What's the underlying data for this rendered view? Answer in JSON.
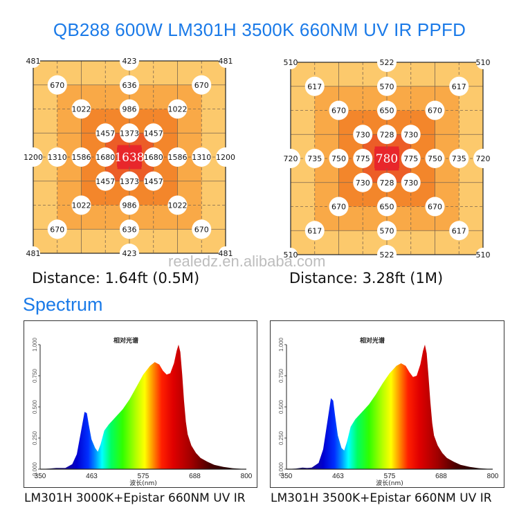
{
  "title": "QB288 600W LM301H 3500K 660NM UV IR PPFD",
  "watermark": "realedz.en.alibaba.com",
  "ppfd_maps": [
    {
      "distance_label": "Distance: 1.64ft (0.5M)",
      "center_value": "1638",
      "points": [
        {
          "r": 0,
          "c": 0,
          "v": "481",
          "style": "edge"
        },
        {
          "r": 0,
          "c": 4,
          "v": "423",
          "style": "circle"
        },
        {
          "r": 0,
          "c": 8,
          "v": "481",
          "style": "edge"
        },
        {
          "r": 1,
          "c": 1,
          "v": "670",
          "style": "circle"
        },
        {
          "r": 1,
          "c": 4,
          "v": "636",
          "style": "circle"
        },
        {
          "r": 1,
          "c": 7,
          "v": "670",
          "style": "circle"
        },
        {
          "r": 2,
          "c": 2,
          "v": "1022",
          "style": "circle"
        },
        {
          "r": 2,
          "c": 4,
          "v": "986",
          "style": "circle"
        },
        {
          "r": 2,
          "c": 6,
          "v": "1022",
          "style": "circle"
        },
        {
          "r": 3,
          "c": 3,
          "v": "1457",
          "style": "circle"
        },
        {
          "r": 3,
          "c": 4,
          "v": "1373",
          "style": "circle"
        },
        {
          "r": 3,
          "c": 5,
          "v": "1457",
          "style": "circle"
        },
        {
          "r": 4,
          "c": 0,
          "v": "1200",
          "style": "circle"
        },
        {
          "r": 4,
          "c": 1,
          "v": "1310",
          "style": "circle"
        },
        {
          "r": 4,
          "c": 2,
          "v": "1586",
          "style": "circle"
        },
        {
          "r": 4,
          "c": 3,
          "v": "1680",
          "style": "circle"
        },
        {
          "r": 4,
          "c": 5,
          "v": "1680",
          "style": "circle"
        },
        {
          "r": 4,
          "c": 6,
          "v": "1586",
          "style": "circle"
        },
        {
          "r": 4,
          "c": 7,
          "v": "1310",
          "style": "circle"
        },
        {
          "r": 4,
          "c": 8,
          "v": "1200",
          "style": "circle"
        },
        {
          "r": 5,
          "c": 3,
          "v": "1457",
          "style": "circle"
        },
        {
          "r": 5,
          "c": 4,
          "v": "1373",
          "style": "circle"
        },
        {
          "r": 5,
          "c": 5,
          "v": "1457",
          "style": "circle"
        },
        {
          "r": 6,
          "c": 2,
          "v": "1022",
          "style": "circle"
        },
        {
          "r": 6,
          "c": 4,
          "v": "986",
          "style": "circle"
        },
        {
          "r": 6,
          "c": 6,
          "v": "1022",
          "style": "circle"
        },
        {
          "r": 7,
          "c": 1,
          "v": "670",
          "style": "circle"
        },
        {
          "r": 7,
          "c": 4,
          "v": "636",
          "style": "circle"
        },
        {
          "r": 7,
          "c": 7,
          "v": "670",
          "style": "circle"
        },
        {
          "r": 8,
          "c": 0,
          "v": "481",
          "style": "edge"
        },
        {
          "r": 8,
          "c": 4,
          "v": "423",
          "style": "circle"
        },
        {
          "r": 8,
          "c": 8,
          "v": "481",
          "style": "edge"
        }
      ]
    },
    {
      "distance_label": "Distance: 3.28ft (1M)",
      "center_value": "780",
      "points": [
        {
          "r": 0,
          "c": 0,
          "v": "510",
          "style": "edge"
        },
        {
          "r": 0,
          "c": 4,
          "v": "522",
          "style": "circle"
        },
        {
          "r": 0,
          "c": 8,
          "v": "510",
          "style": "edge"
        },
        {
          "r": 1,
          "c": 1,
          "v": "617",
          "style": "circle"
        },
        {
          "r": 1,
          "c": 4,
          "v": "570",
          "style": "circle"
        },
        {
          "r": 1,
          "c": 7,
          "v": "617",
          "style": "circle"
        },
        {
          "r": 2,
          "c": 2,
          "v": "670",
          "style": "circle"
        },
        {
          "r": 2,
          "c": 4,
          "v": "650",
          "style": "circle"
        },
        {
          "r": 2,
          "c": 6,
          "v": "670",
          "style": "circle"
        },
        {
          "r": 3,
          "c": 3,
          "v": "730",
          "style": "circle"
        },
        {
          "r": 3,
          "c": 4,
          "v": "728",
          "style": "circle"
        },
        {
          "r": 3,
          "c": 5,
          "v": "730",
          "style": "circle"
        },
        {
          "r": 4,
          "c": 0,
          "v": "720",
          "style": "circle"
        },
        {
          "r": 4,
          "c": 1,
          "v": "735",
          "style": "circle"
        },
        {
          "r": 4,
          "c": 2,
          "v": "750",
          "style": "circle"
        },
        {
          "r": 4,
          "c": 3,
          "v": "775",
          "style": "circle"
        },
        {
          "r": 4,
          "c": 5,
          "v": "775",
          "style": "circle"
        },
        {
          "r": 4,
          "c": 6,
          "v": "750",
          "style": "circle"
        },
        {
          "r": 4,
          "c": 7,
          "v": "735",
          "style": "circle"
        },
        {
          "r": 4,
          "c": 8,
          "v": "720",
          "style": "circle"
        },
        {
          "r": 5,
          "c": 3,
          "v": "730",
          "style": "circle"
        },
        {
          "r": 5,
          "c": 4,
          "v": "728",
          "style": "circle"
        },
        {
          "r": 5,
          "c": 5,
          "v": "730",
          "style": "circle"
        },
        {
          "r": 6,
          "c": 2,
          "v": "670",
          "style": "circle"
        },
        {
          "r": 6,
          "c": 4,
          "v": "650",
          "style": "circle"
        },
        {
          "r": 6,
          "c": 6,
          "v": "670",
          "style": "circle"
        },
        {
          "r": 7,
          "c": 1,
          "v": "617",
          "style": "circle"
        },
        {
          "r": 7,
          "c": 4,
          "v": "570",
          "style": "circle"
        },
        {
          "r": 7,
          "c": 7,
          "v": "617",
          "style": "circle"
        },
        {
          "r": 8,
          "c": 0,
          "v": "510",
          "style": "edge"
        },
        {
          "r": 8,
          "c": 4,
          "v": "522",
          "style": "circle"
        },
        {
          "r": 8,
          "c": 8,
          "v": "510",
          "style": "edge"
        }
      ]
    }
  ],
  "heat_colors": [
    "#fcc96c",
    "#f9a947",
    "#f3862b",
    "#ec5d27",
    "#e8262b"
  ],
  "section_title": "Spectrum",
  "chart_data": [
    {
      "type": "area",
      "title": "相对光谱",
      "xlabel": "波长(nm)",
      "ylabel": "",
      "xlim": [
        350,
        800
      ],
      "ylim": [
        0,
        1
      ],
      "xticks": [
        "350",
        "463",
        "575",
        "688",
        "800"
      ],
      "yticks": [
        "0.000",
        "0.250",
        "0.500",
        "0.750",
        "1.000"
      ],
      "caption": "LM301H 3000K+Epistar 660NM UV IR",
      "x": [
        350,
        370,
        385,
        395,
        405,
        420,
        430,
        440,
        447,
        452,
        456,
        462,
        470,
        476,
        482,
        490,
        500,
        510,
        520,
        530,
        545,
        560,
        575,
        590,
        600,
        610,
        618,
        626,
        634,
        642,
        648,
        652,
        656,
        660,
        664,
        668,
        672,
        680,
        690,
        700,
        715,
        730,
        750,
        770,
        800
      ],
      "values": [
        0.0,
        0.005,
        0.01,
        0.01,
        0.01,
        0.04,
        0.12,
        0.32,
        0.46,
        0.45,
        0.36,
        0.24,
        0.17,
        0.14,
        0.2,
        0.31,
        0.36,
        0.4,
        0.44,
        0.48,
        0.56,
        0.66,
        0.76,
        0.83,
        0.86,
        0.84,
        0.79,
        0.76,
        0.77,
        0.85,
        0.95,
        1.0,
        0.94,
        0.76,
        0.55,
        0.38,
        0.28,
        0.19,
        0.13,
        0.09,
        0.06,
        0.035,
        0.018,
        0.008,
        0.0
      ]
    },
    {
      "type": "area",
      "title": "相对光谱",
      "xlabel": "波长(nm)",
      "ylabel": "",
      "xlim": [
        350,
        800
      ],
      "ylim": [
        0,
        1
      ],
      "xticks": [
        "350",
        "463",
        "575",
        "688",
        "800"
      ],
      "yticks": [
        "0.000",
        "0.250",
        "0.500",
        "0.750",
        "1.000"
      ],
      "caption": "LM301H 3500K+Epistar 660NM UV IR",
      "x": [
        350,
        370,
        385,
        395,
        405,
        420,
        430,
        440,
        447,
        452,
        456,
        462,
        470,
        476,
        482,
        490,
        500,
        510,
        520,
        530,
        545,
        560,
        575,
        590,
        600,
        610,
        618,
        626,
        634,
        642,
        648,
        652,
        656,
        660,
        664,
        668,
        672,
        680,
        690,
        700,
        715,
        730,
        750,
        770,
        800
      ],
      "values": [
        0.0,
        0.005,
        0.012,
        0.01,
        0.012,
        0.05,
        0.16,
        0.4,
        0.57,
        0.55,
        0.43,
        0.27,
        0.17,
        0.15,
        0.22,
        0.34,
        0.4,
        0.44,
        0.48,
        0.52,
        0.6,
        0.69,
        0.77,
        0.83,
        0.85,
        0.83,
        0.78,
        0.74,
        0.75,
        0.84,
        0.95,
        1.0,
        0.93,
        0.74,
        0.54,
        0.37,
        0.27,
        0.19,
        0.13,
        0.09,
        0.06,
        0.035,
        0.018,
        0.008,
        0.0
      ]
    }
  ]
}
